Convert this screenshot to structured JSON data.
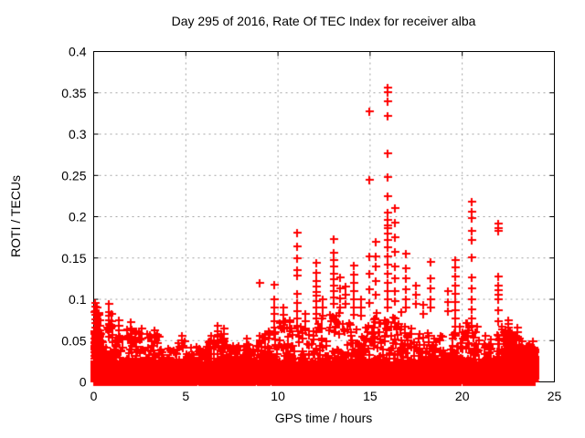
{
  "window": {
    "background": "#ffffff"
  },
  "chart_data": {
    "type": "scatter",
    "title": "Day 295 of 2016, Rate Of TEC Index for receiver alba",
    "xlabel": "GPS time / hours",
    "ylabel": "ROTI / TECUs",
    "xlim": [
      0,
      25
    ],
    "ylim": [
      0,
      0.4
    ],
    "xticks": [
      0,
      5,
      10,
      15,
      20,
      25
    ],
    "xtick_labels": [
      "0",
      "5",
      "10",
      "15",
      "20",
      "25"
    ],
    "yticks": [
      0,
      0.05,
      0.1,
      0.15,
      0.2,
      0.25,
      0.3,
      0.35,
      0.4
    ],
    "ytick_labels": [
      "0",
      "0.05",
      "0.1",
      "0.15",
      "0.2",
      "0.25",
      "0.3",
      "0.35",
      "0.4"
    ],
    "grid": "dashed",
    "legend": "none",
    "marker": "plus",
    "marker_color": "#ff0000",
    "grid_color": "#a8a8a8",
    "axis_color": "#000000",
    "data_start_hour": 0.0,
    "data_end_hour": 23.93,
    "baseline_band": {
      "count": 5200,
      "max": 0.024,
      "exp": 2.0
    },
    "fuzz_envelope": [
      [
        0.0,
        0.35,
        0.09
      ],
      [
        0.35,
        0.75,
        0.05
      ],
      [
        0.75,
        1.1,
        0.07
      ],
      [
        1.1,
        1.7,
        0.055
      ],
      [
        1.7,
        2.3,
        0.065
      ],
      [
        2.3,
        3.0,
        0.06
      ],
      [
        3.0,
        3.6,
        0.058
      ],
      [
        3.6,
        4.4,
        0.042
      ],
      [
        4.4,
        5.2,
        0.05
      ],
      [
        5.2,
        6.2,
        0.044
      ],
      [
        6.2,
        7.2,
        0.058
      ],
      [
        7.2,
        8.2,
        0.048
      ],
      [
        8.2,
        9.2,
        0.05
      ],
      [
        9.2,
        10.0,
        0.062
      ],
      [
        10.0,
        10.7,
        0.08
      ],
      [
        10.7,
        11.4,
        0.07
      ],
      [
        11.4,
        12.0,
        0.068
      ],
      [
        12.0,
        12.8,
        0.08
      ],
      [
        12.8,
        13.5,
        0.085
      ],
      [
        13.5,
        14.2,
        0.075
      ],
      [
        14.2,
        15.0,
        0.07
      ],
      [
        15.0,
        15.7,
        0.085
      ],
      [
        15.7,
        16.7,
        0.09
      ],
      [
        16.7,
        17.3,
        0.075
      ],
      [
        17.3,
        18.2,
        0.06
      ],
      [
        18.2,
        19.2,
        0.058
      ],
      [
        19.2,
        20.2,
        0.068
      ],
      [
        20.2,
        21.0,
        0.075
      ],
      [
        21.0,
        21.8,
        0.058
      ],
      [
        21.8,
        22.75,
        0.072
      ],
      [
        22.75,
        23.35,
        0.055
      ],
      [
        23.35,
        23.93,
        0.05
      ]
    ],
    "dense_blobs": [
      {
        "h0": 0.0,
        "h1": 0.32,
        "ymax": 0.062,
        "count": 320,
        "exp": 1.8
      },
      {
        "h0": 22.3,
        "h1": 22.78,
        "ymax": 0.058,
        "count": 220,
        "exp": 1.6
      },
      {
        "h0": 23.35,
        "h1": 23.93,
        "ymax": 0.042,
        "count": 750,
        "exp": 1.2
      }
    ],
    "spike_columns": [
      {
        "x": 0.07,
        "ys": [
          0.096,
          0.091,
          0.086,
          0.081,
          0.076,
          0.071,
          0.066,
          0.061,
          0.056,
          0.051,
          0.046,
          0.041,
          0.036,
          0.031
        ]
      },
      {
        "x": 0.15,
        "ys": [
          0.09,
          0.083,
          0.077,
          0.07,
          0.064,
          0.058,
          0.052
        ]
      },
      {
        "x": 0.3,
        "ys": [
          0.075,
          0.068,
          0.062,
          0.055
        ]
      },
      {
        "x": 0.8,
        "ys": [
          0.094,
          0.085,
          0.08,
          0.075,
          0.07,
          0.065,
          0.06,
          0.055
        ]
      },
      {
        "x": 0.95,
        "ys": [
          0.082,
          0.074,
          0.067
        ]
      },
      {
        "x": 1.35,
        "ys": [
          0.075,
          0.068,
          0.062,
          0.056,
          0.05
        ]
      },
      {
        "x": 2.0,
        "ys": [
          0.072,
          0.065,
          0.058,
          0.052,
          0.047
        ]
      },
      {
        "x": 2.25,
        "ys": [
          0.06,
          0.054,
          0.048
        ]
      },
      {
        "x": 2.6,
        "ys": [
          0.065,
          0.058,
          0.052
        ]
      },
      {
        "x": 3.3,
        "ys": [
          0.062,
          0.055,
          0.049
        ]
      },
      {
        "x": 4.8,
        "ys": [
          0.056,
          0.05
        ]
      },
      {
        "x": 6.7,
        "ys": [
          0.068,
          0.061,
          0.055,
          0.049
        ]
      },
      {
        "x": 7.05,
        "ys": [
          0.065,
          0.058,
          0.052
        ]
      },
      {
        "x": 8.3,
        "ys": [
          0.052,
          0.046
        ]
      },
      {
        "x": 9.0,
        "ys": [
          0.12,
          0.056,
          0.05
        ]
      },
      {
        "x": 9.8,
        "ys": [
          0.118,
          0.1,
          0.09,
          0.082,
          0.074,
          0.066,
          0.058
        ]
      },
      {
        "x": 10.3,
        "ys": [
          0.09,
          0.081,
          0.073,
          0.066
        ]
      },
      {
        "x": 11.05,
        "ys": [
          0.181,
          0.164,
          0.15,
          0.135,
          0.129,
          0.107,
          0.096,
          0.086,
          0.077,
          0.068
        ]
      },
      {
        "x": 11.5,
        "ys": [
          0.082,
          0.073,
          0.065
        ]
      },
      {
        "x": 12.1,
        "ys": [
          0.144,
          0.132,
          0.122,
          0.115,
          0.109,
          0.104,
          0.098,
          0.09,
          0.082
        ]
      },
      {
        "x": 12.45,
        "ys": [
          0.1,
          0.09,
          0.08
        ]
      },
      {
        "x": 13.0,
        "ys": [
          0.173,
          0.156,
          0.148,
          0.14,
          0.131,
          0.124,
          0.117,
          0.11,
          0.102,
          0.094
        ]
      },
      {
        "x": 13.35,
        "ys": [
          0.126,
          0.113,
          0.101,
          0.09
        ]
      },
      {
        "x": 13.65,
        "ys": [
          0.116,
          0.105,
          0.095
        ]
      },
      {
        "x": 14.1,
        "ys": [
          0.141,
          0.13,
          0.12,
          0.11,
          0.1,
          0.09,
          0.081
        ]
      },
      {
        "x": 14.5,
        "ys": [
          0.1,
          0.09,
          0.08
        ]
      },
      {
        "x": 14.95,
        "ys": [
          0.328,
          0.245,
          0.152,
          0.131,
          0.112,
          0.096
        ]
      },
      {
        "x": 15.3,
        "ys": [
          0.17,
          0.152,
          0.14,
          0.122,
          0.105
        ]
      },
      {
        "x": 15.95,
        "ys": [
          0.356,
          0.351,
          0.34,
          0.322,
          0.277,
          0.248,
          0.225,
          0.205,
          0.196,
          0.19,
          0.186,
          0.18,
          0.172,
          0.163,
          0.152,
          0.142,
          0.131,
          0.12,
          0.11,
          0.1,
          0.09
        ]
      },
      {
        "x": 16.35,
        "ys": [
          0.21,
          0.193,
          0.175,
          0.157,
          0.14,
          0.125,
          0.11,
          0.098
        ]
      },
      {
        "x": 16.95,
        "ys": [
          0.155,
          0.138,
          0.125,
          0.112,
          0.1,
          0.09
        ]
      },
      {
        "x": 17.5,
        "ys": [
          0.117,
          0.105,
          0.094
        ]
      },
      {
        "x": 17.9,
        "ys": [
          0.093,
          0.082
        ]
      },
      {
        "x": 18.3,
        "ys": [
          0.145,
          0.125,
          0.113,
          0.1,
          0.09
        ]
      },
      {
        "x": 19.2,
        "ys": [
          0.11,
          0.097,
          0.086
        ]
      },
      {
        "x": 19.6,
        "ys": [
          0.148,
          0.139,
          0.128,
          0.117,
          0.107,
          0.097,
          0.087,
          0.077,
          0.067,
          0.058
        ]
      },
      {
        "x": 20.5,
        "ys": [
          0.218,
          0.206,
          0.198,
          0.183,
          0.172,
          0.151,
          0.126,
          0.113,
          0.1,
          0.088,
          0.077,
          0.068
        ]
      },
      {
        "x": 21.95,
        "ys": [
          0.192,
          0.186,
          0.183,
          0.128,
          0.117,
          0.111,
          0.105,
          0.1,
          0.087,
          0.073
        ]
      },
      {
        "x": 22.5,
        "ys": [
          0.075,
          0.07,
          0.066,
          0.062,
          0.058,
          0.054,
          0.05
        ]
      },
      {
        "x": 23.0,
        "ys": [
          0.066,
          0.06,
          0.055
        ]
      }
    ]
  }
}
